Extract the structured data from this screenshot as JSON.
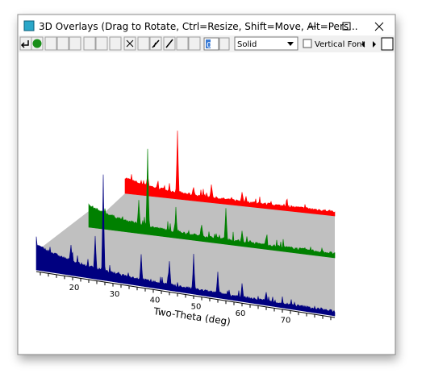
{
  "window": {
    "title": "3D Overlays (Drag to Rotate, Ctrl=Resize, Shift=Move, Alt=Pers..."
  },
  "toolbar": {
    "spin_value": "0",
    "line_style": "Solid",
    "vertical_font_label": "Vertical Font"
  },
  "plot": {
    "x_axis_label": "Two-Theta (deg)",
    "x_tick_labels": [
      "20",
      "30",
      "40",
      "50",
      "60",
      "70"
    ]
  }
}
